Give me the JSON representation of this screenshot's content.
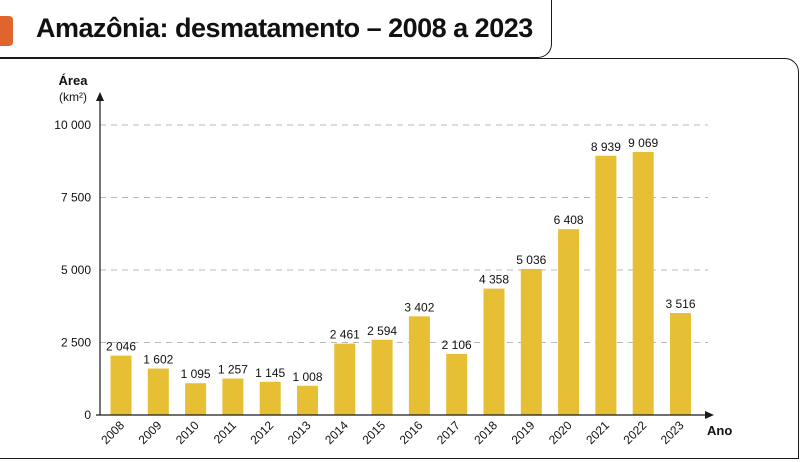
{
  "title": "Amazônia: desmatamento – 2008 a 2023",
  "colors": {
    "bar": "#e6bf35",
    "accent": "#e0652d",
    "grid": "#b8b8b8",
    "axis": "#1a1a1a"
  },
  "chart_data": {
    "type": "bar",
    "title": "Amazônia: desmatamento – 2008 a 2023",
    "ylabel": "Área",
    "yunit": "(km²)",
    "xlabel": "Ano",
    "categories": [
      "2008",
      "2009",
      "2010",
      "2011",
      "2012",
      "2013",
      "2014",
      "2015",
      "2016",
      "2017",
      "2018",
      "2019",
      "2020",
      "2021",
      "2022",
      "2023"
    ],
    "values": [
      2046,
      1602,
      1095,
      1257,
      1145,
      1008,
      2461,
      2594,
      3402,
      2106,
      4358,
      5036,
      6408,
      8939,
      9069,
      3516
    ],
    "value_labels": [
      "2 046",
      "1 602",
      "1 095",
      "1 257",
      "1 145",
      "1 008",
      "2 461",
      "2 594",
      "3 402",
      "2 106",
      "4 358",
      "5 036",
      "6 408",
      "8 939",
      "9 069",
      "3 516"
    ],
    "yticks": [
      0,
      2500,
      5000,
      7500,
      10000
    ],
    "ytick_labels": [
      "0",
      "2 500",
      "5 000",
      "7 500",
      "10 000"
    ],
    "ylim": [
      0,
      10000
    ],
    "grid": true
  }
}
